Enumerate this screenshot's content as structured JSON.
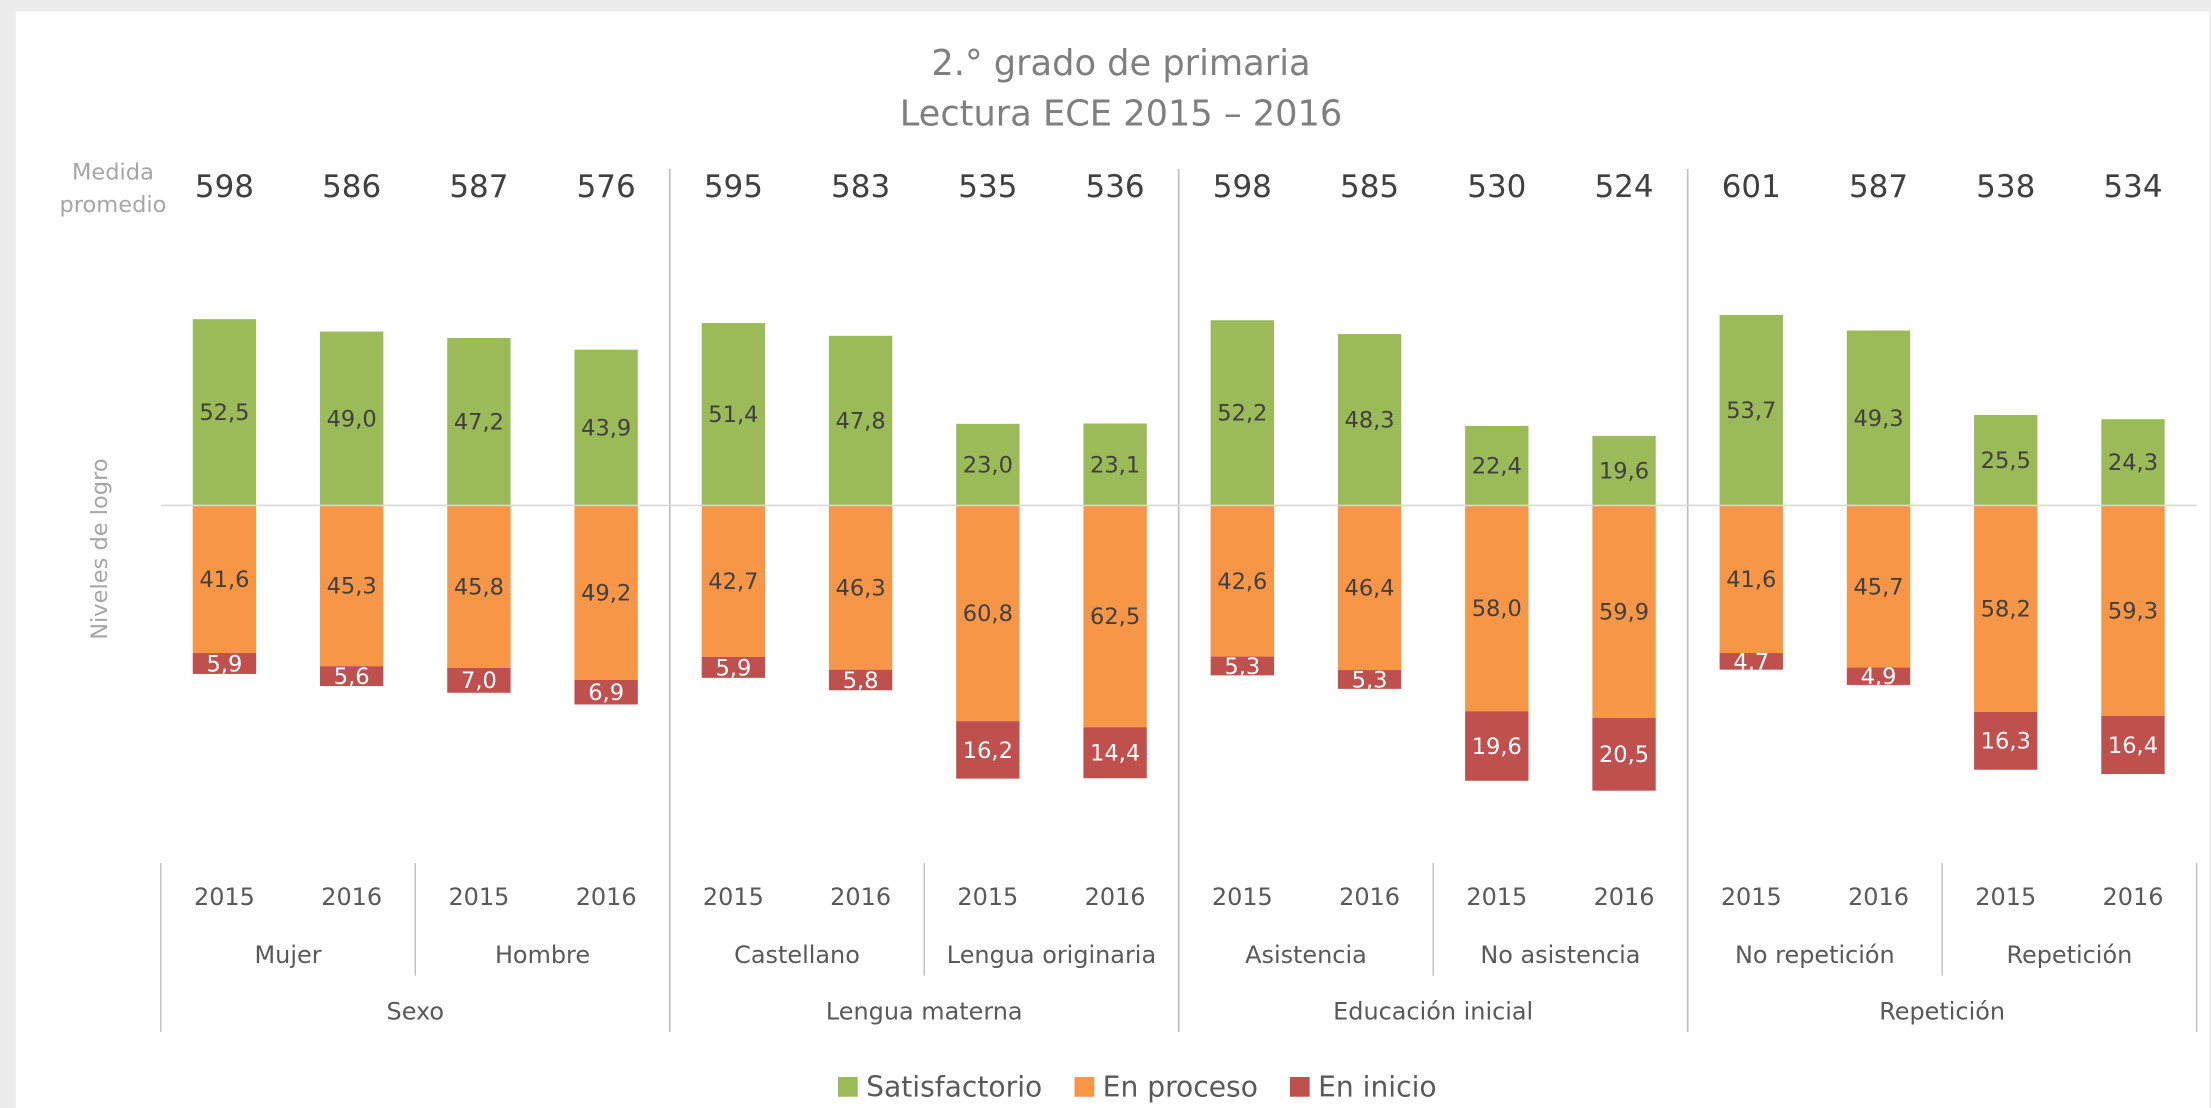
{
  "chart_data": {
    "type": "diverging_bar",
    "title": "2.° grado de primaria",
    "subtitle": "Lectura ECE 2015 – 2016",
    "y_label": "Niveles de logro",
    "mean_label": [
      "Medida",
      "promedio"
    ],
    "categories": [
      "2015",
      "2016",
      "2015",
      "2016",
      "2015",
      "2016",
      "2015",
      "2016",
      "2015",
      "2016",
      "2015",
      "2016",
      "2015",
      "2016",
      "2015",
      "2016"
    ],
    "groups": [
      "Mujer",
      "Hombre",
      "Castellano",
      "Lengua originaria",
      "Asistencia",
      "No asistencia",
      "No repetición",
      "Repetición"
    ],
    "supergroups": [
      "Sexo",
      "Lengua materna",
      "Educación inicial",
      "Repetición"
    ],
    "means": [
      598,
      586,
      587,
      576,
      595,
      583,
      535,
      536,
      598,
      585,
      530,
      524,
      601,
      587,
      538,
      534
    ],
    "series": [
      {
        "name": "Satisfactorio",
        "color": "#9bbb59",
        "side": "up",
        "values": [
          52.5,
          49.0,
          47.2,
          43.9,
          51.4,
          47.8,
          23.0,
          23.1,
          52.2,
          48.3,
          22.4,
          19.6,
          53.7,
          49.3,
          25.5,
          24.3
        ],
        "value_labels": [
          "52,5",
          "49,0",
          "47,2",
          "43,9",
          "51,4",
          "47,8",
          "23,0",
          "23,1",
          "52,2",
          "48,3",
          "22,4",
          "19,6",
          "53,7",
          "49,3",
          "25,5",
          "24,3"
        ]
      },
      {
        "name": "En proceso",
        "color": "#f79646",
        "side": "down",
        "values": [
          41.6,
          45.3,
          45.8,
          49.2,
          42.7,
          46.3,
          60.8,
          62.5,
          42.6,
          46.4,
          58.0,
          59.9,
          41.6,
          45.7,
          58.2,
          59.3
        ],
        "value_labels": [
          "41,6",
          "45,3",
          "45,8",
          "49,2",
          "42,7",
          "46,3",
          "60,8",
          "62,5",
          "42,6",
          "46,4",
          "58,0",
          "59,9",
          "41,6",
          "45,7",
          "58,2",
          "59,3"
        ]
      },
      {
        "name": "En inicio",
        "color": "#c0504d",
        "side": "down",
        "values": [
          5.9,
          5.6,
          7.0,
          6.9,
          5.9,
          5.8,
          16.2,
          14.4,
          5.3,
          5.3,
          19.6,
          20.5,
          4.7,
          4.9,
          16.3,
          16.4
        ],
        "value_labels": [
          "5,9",
          "5,6",
          "7,0",
          "6,9",
          "5,9",
          "5,8",
          "16,2",
          "14,4",
          "5,3",
          "5,3",
          "19,6",
          "20,5",
          "4,7",
          "4,9",
          "16,3",
          "16,4"
        ]
      }
    ]
  }
}
